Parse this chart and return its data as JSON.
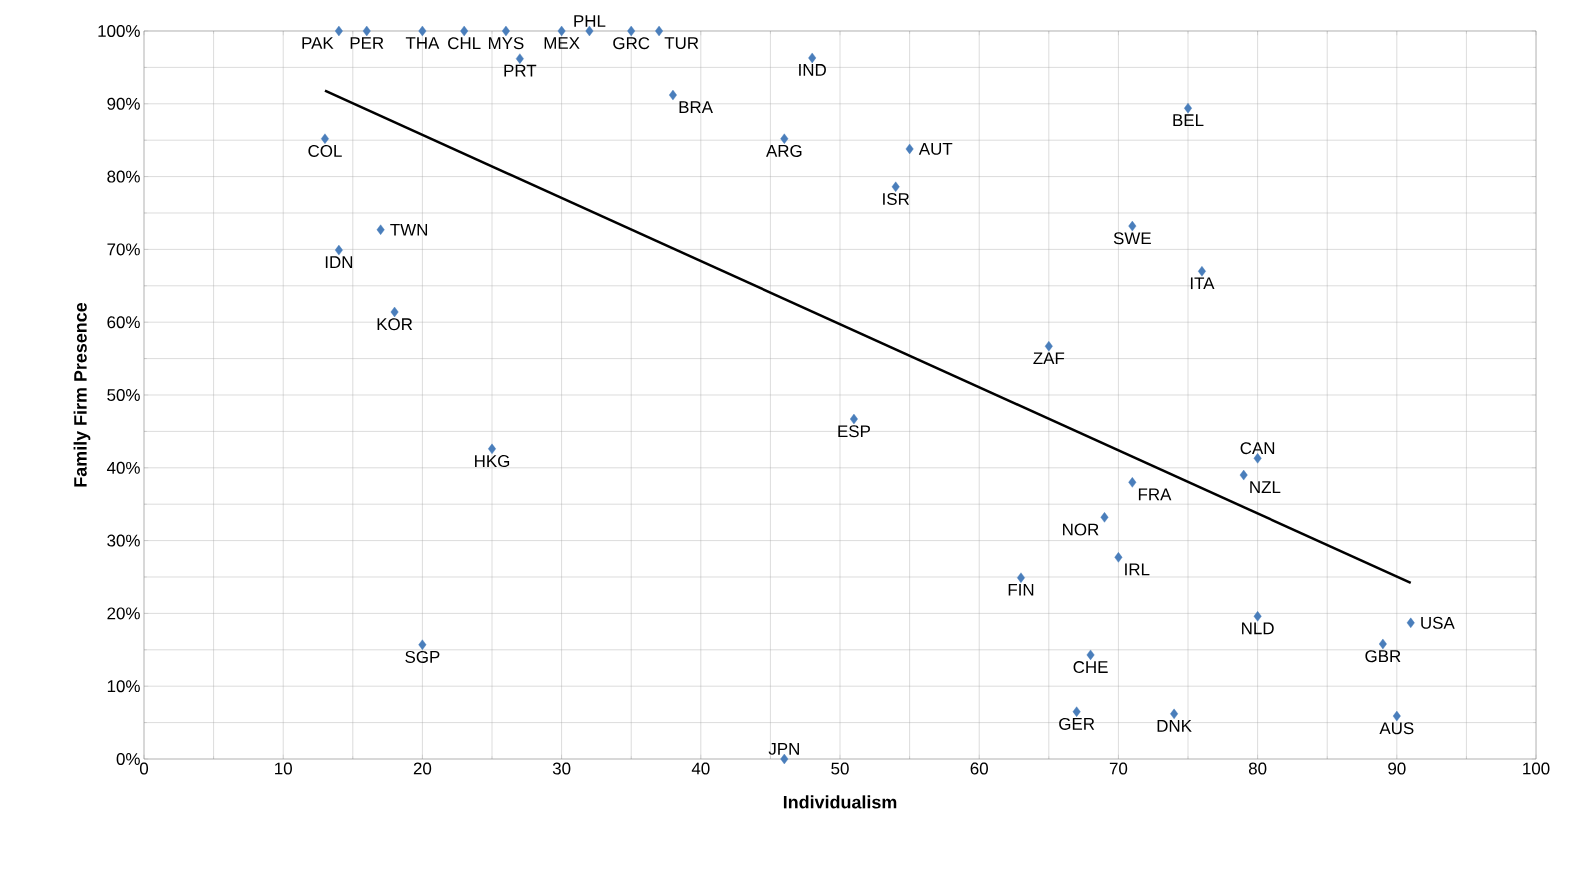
{
  "chart_data": {
    "type": "scatter",
    "xlabel": "Individualism",
    "ylabel": "Family Firm Presence",
    "xlim": [
      0,
      100
    ],
    "ylim": [
      0,
      100
    ],
    "xticks": [
      0,
      10,
      20,
      30,
      40,
      50,
      60,
      70,
      80,
      90,
      100
    ],
    "yticks": [
      {
        "value": 0,
        "label": "0%"
      },
      {
        "value": 10,
        "label": "10%"
      },
      {
        "value": 20,
        "label": "20%"
      },
      {
        "value": 30,
        "label": "30%"
      },
      {
        "value": 40,
        "label": "40%"
      },
      {
        "value": 50,
        "label": "50%"
      },
      {
        "value": 60,
        "label": "60%"
      },
      {
        "value": 70,
        "label": "70%"
      },
      {
        "value": 80,
        "label": "80%"
      },
      {
        "value": 90,
        "label": "90%"
      },
      {
        "value": 100,
        "label": "100%"
      }
    ],
    "grid": true,
    "series": [
      {
        "color": "#4a7ebb",
        "marker": "diamond",
        "x": [
          14,
          16,
          20,
          23,
          26,
          30,
          32,
          35,
          37,
          27,
          48,
          38,
          75,
          13,
          46,
          55,
          54,
          71,
          17,
          14,
          76,
          18,
          65,
          51,
          25,
          80,
          79,
          71,
          69,
          70,
          63,
          80,
          91,
          89,
          20,
          68,
          67,
          74,
          90,
          46
        ],
        "values": [
          100,
          100,
          100,
          100,
          100,
          100,
          100,
          100,
          100,
          96.2,
          96.3,
          91.2,
          89.4,
          85.2,
          85.2,
          83.8,
          78.6,
          73.2,
          72.7,
          69.9,
          67.0,
          61.4,
          56.7,
          46.7,
          42.6,
          41.3,
          39.0,
          38.0,
          33.2,
          27.7,
          24.9,
          19.6,
          18.7,
          15.8,
          15.7,
          14.3,
          6.5,
          6.2,
          5.9,
          0
        ]
      },
      {
        "type": "line",
        "color": "#000000",
        "x": [
          13,
          91
        ],
        "values": [
          91.8,
          24.2
        ]
      }
    ],
    "annotations": [
      {
        "text": "PAK",
        "x": 14,
        "y": 100
      },
      {
        "text": "PER",
        "x": 16,
        "y": 100
      },
      {
        "text": "THA",
        "x": 20,
        "y": 100
      },
      {
        "text": "CHL",
        "x": 23,
        "y": 100
      },
      {
        "text": "MYS",
        "x": 26,
        "y": 100
      },
      {
        "text": "MEX",
        "x": 30,
        "y": 100
      },
      {
        "text": "PHL",
        "x": 32,
        "y": 100
      },
      {
        "text": "GRC",
        "x": 35,
        "y": 100
      },
      {
        "text": "TUR",
        "x": 37,
        "y": 100
      },
      {
        "text": "PRT",
        "x": 27,
        "y": 96.2
      },
      {
        "text": "IND",
        "x": 48,
        "y": 96.3
      },
      {
        "text": "BRA",
        "x": 38,
        "y": 91.2
      },
      {
        "text": "BEL",
        "x": 75,
        "y": 89.4
      },
      {
        "text": "COL",
        "x": 13,
        "y": 85.2
      },
      {
        "text": "ARG",
        "x": 46,
        "y": 85.2
      },
      {
        "text": "AUT",
        "x": 55,
        "y": 83.8
      },
      {
        "text": "ISR",
        "x": 54,
        "y": 78.6
      },
      {
        "text": "SWE",
        "x": 71,
        "y": 73.2
      },
      {
        "text": "TWN",
        "x": 17,
        "y": 72.7
      },
      {
        "text": "IDN",
        "x": 14,
        "y": 69.9
      },
      {
        "text": "ITA",
        "x": 76,
        "y": 67.0
      },
      {
        "text": "KOR",
        "x": 18,
        "y": 61.4
      },
      {
        "text": "ZAF",
        "x": 65,
        "y": 56.7
      },
      {
        "text": "ESP",
        "x": 51,
        "y": 46.7
      },
      {
        "text": "HKG",
        "x": 25,
        "y": 42.6
      },
      {
        "text": "CAN",
        "x": 80,
        "y": 41.3
      },
      {
        "text": "NZL",
        "x": 79,
        "y": 39.0
      },
      {
        "text": "FRA",
        "x": 71,
        "y": 38.0
      },
      {
        "text": "NOR",
        "x": 69,
        "y": 33.2
      },
      {
        "text": "IRL",
        "x": 70,
        "y": 27.7
      },
      {
        "text": "FIN",
        "x": 63,
        "y": 24.9
      },
      {
        "text": "NLD",
        "x": 80,
        "y": 19.6
      },
      {
        "text": "USA",
        "x": 91,
        "y": 18.7
      },
      {
        "text": "GBR",
        "x": 89,
        "y": 15.8
      },
      {
        "text": "SGP",
        "x": 20,
        "y": 15.7
      },
      {
        "text": "CHE",
        "x": 68,
        "y": 14.3
      },
      {
        "text": "GER",
        "x": 67,
        "y": 6.5
      },
      {
        "text": "DNK",
        "x": 74,
        "y": 6.2
      },
      {
        "text": "AUS",
        "x": 90,
        "y": 5.9
      },
      {
        "text": "JPN",
        "x": 46,
        "y": 0
      }
    ]
  }
}
